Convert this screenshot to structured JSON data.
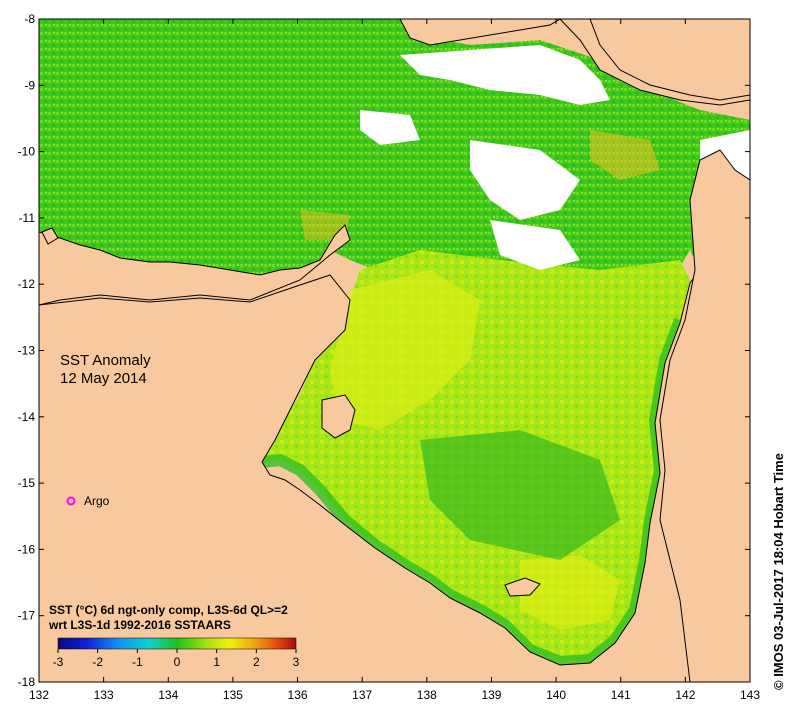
{
  "map": {
    "title_line1": "SST Anomaly",
    "title_line2": "12 May 2014",
    "x_ticks": [
      "132",
      "133",
      "134",
      "135",
      "136",
      "137",
      "138",
      "139",
      "140",
      "141",
      "142",
      "143"
    ],
    "y_ticks": [
      "-8",
      "-9",
      "-10",
      "-11",
      "-12",
      "-13",
      "-14",
      "-15",
      "-16",
      "-17",
      "-18"
    ],
    "argo_label": "Argo",
    "legend_line1": "SST (°C) 6d ngt-only comp, L3S-6d QL>=2",
    "legend_line2": "wrt L3S-1d 1992-2016 SSTAARS",
    "colorbar_ticks": [
      "-3",
      "-2",
      "-1",
      "0",
      "1",
      "2",
      "3"
    ],
    "credit": "© IMOS 03-Jul-2017 18:04 Hobart Time"
  },
  "colors": {
    "land": "#f8c99f",
    "ocean_green": "#3ec81e",
    "ocean_lightgreen": "#8ee21a",
    "ocean_yellow": "#e6ee10",
    "argo_marker": "#ff00ff"
  }
}
